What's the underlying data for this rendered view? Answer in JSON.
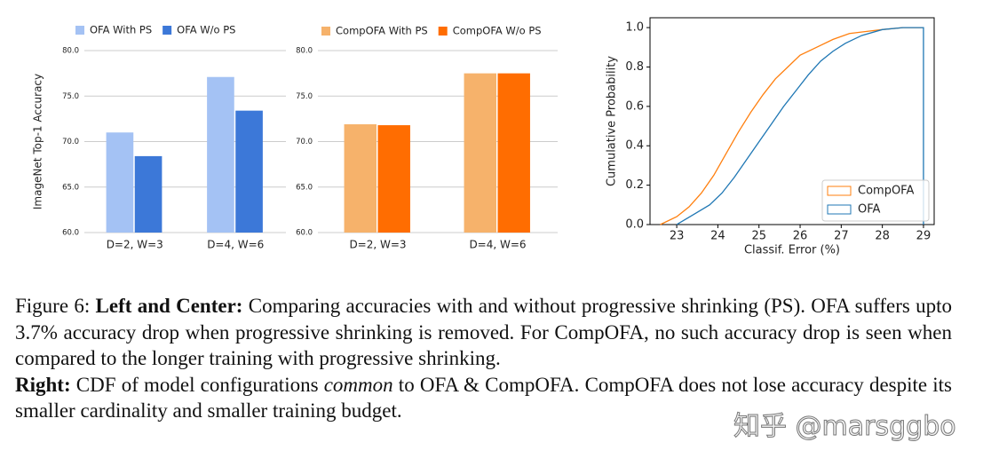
{
  "chart_data": [
    {
      "type": "bar",
      "ylabel": "ImageNet Top-1 Accuracy",
      "categories": [
        "D=2, W=3",
        "D=4, W=6"
      ],
      "series": [
        {
          "name": "OFA With PS",
          "color": "#a4c2f4",
          "values": [
            71.0,
            77.1
          ]
        },
        {
          "name": "OFA W/o PS",
          "color": "#3c78d8",
          "values": [
            68.4,
            73.4
          ]
        }
      ],
      "ylim": [
        60,
        80
      ],
      "yticks": [
        {
          "value": 60,
          "label": "60.0"
        },
        {
          "value": 65,
          "label": "65.0"
        },
        {
          "value": 70,
          "label": "70.0"
        },
        {
          "value": 75,
          "label": "75.0"
        },
        {
          "value": 80,
          "label": "80.0"
        }
      ],
      "grid": true,
      "legend": "top"
    },
    {
      "type": "bar",
      "categories": [
        "D=2, W=3",
        "D=4, W=6"
      ],
      "series": [
        {
          "name": "CompOFA With PS",
          "color": "#f6b26b",
          "values": [
            71.9,
            77.5
          ]
        },
        {
          "name": "CompOFA W/o PS",
          "color": "#ff6d01",
          "values": [
            71.8,
            77.5
          ]
        }
      ],
      "ylim": [
        60,
        80
      ],
      "yticks": [
        {
          "value": 60,
          "label": "60.0"
        },
        {
          "value": 65,
          "label": "65.0"
        },
        {
          "value": 70,
          "label": "70.0"
        },
        {
          "value": 75,
          "label": "75.0"
        },
        {
          "value": 80,
          "label": "80.0"
        }
      ],
      "grid": true,
      "legend": "top"
    },
    {
      "type": "line",
      "xlabel": "Classif. Error (%)",
      "ylabel": "Cumulative Probability",
      "series": [
        {
          "name": "CompOFA",
          "color": "#ff7f0e",
          "x": [
            22.6,
            23.0,
            23.3,
            23.6,
            23.9,
            24.2,
            24.5,
            24.8,
            25.1,
            25.4,
            25.7,
            26.0,
            26.4,
            26.8,
            27.2,
            27.6,
            28.0,
            28.5,
            29.0
          ],
          "values": [
            0,
            0.04,
            0.09,
            0.16,
            0.25,
            0.36,
            0.47,
            0.57,
            0.66,
            0.74,
            0.8,
            0.86,
            0.9,
            0.94,
            0.97,
            0.98,
            0.99,
            1.0,
            1.0
          ]
        },
        {
          "name": "OFA",
          "color": "#1f77b4",
          "x": [
            23.0,
            23.4,
            23.8,
            24.1,
            24.4,
            24.7,
            25.0,
            25.3,
            25.6,
            25.9,
            26.2,
            26.5,
            26.8,
            27.1,
            27.5,
            28.0,
            28.5,
            29.0,
            29.0
          ],
          "values": [
            0,
            0.05,
            0.1,
            0.16,
            0.24,
            0.33,
            0.42,
            0.51,
            0.6,
            0.68,
            0.76,
            0.83,
            0.88,
            0.92,
            0.96,
            0.99,
            1.0,
            1.0,
            0
          ]
        }
      ],
      "xlim": [
        22.35,
        29.26
      ],
      "ylim": [
        0,
        1.05
      ],
      "xticks": [
        23,
        24,
        25,
        26,
        27,
        28,
        29
      ],
      "yticks": [
        {
          "value": 0,
          "label": "0.0"
        },
        {
          "value": 0.2,
          "label": "0.2"
        },
        {
          "value": 0.4,
          "label": "0.4"
        },
        {
          "value": 0.6,
          "label": "0.6"
        },
        {
          "value": 0.8,
          "label": "0.8"
        },
        {
          "value": 1.0,
          "label": "1.0"
        }
      ],
      "grid": false,
      "legend": "lower right"
    }
  ],
  "caption": [
    [
      "Figure 6: ",
      "Left and Center:",
      " Comparing accuracies with and without progressive shrinking (PS). OFA suffers upto 3.7% accuracy drop when progressive shrinking is removed. For CompOFA, no such accuracy drop is seen when compared to the longer training with progressive shrinking."
    ],
    [
      "Right:",
      " CDF of model configurations ",
      "common",
      " to OFA & CompOFA. CompOFA does not lose accuracy despite its smaller cardinality and smaller training budget."
    ]
  ],
  "watermark": "知乎 @marsggbo"
}
